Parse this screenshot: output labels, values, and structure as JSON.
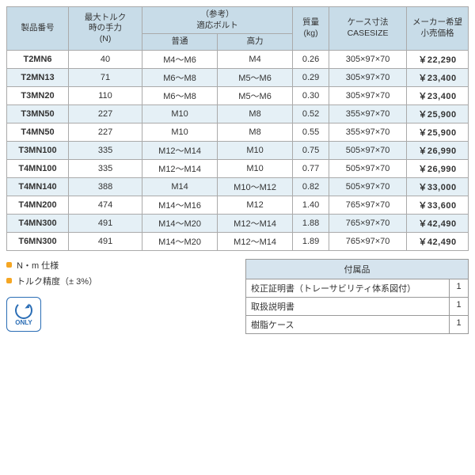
{
  "colors": {
    "header_bg": "#c8dce8",
    "alt_row_bg": "#e5f0f6",
    "border": "#999999",
    "bullet": "#f5a623",
    "badge": "#2a6db5"
  },
  "table": {
    "headers": {
      "product_no": "製品番号",
      "max_torque": "最大トルク\n時の手力\n(N)",
      "bolt_group": "（参考）\n適応ボルト",
      "bolt_normal": "普通",
      "bolt_high": "高力",
      "mass": "質量\n(kg)",
      "case_size": "ケース寸法\nCASESIZE",
      "price": "メーカー希望\n小売価格"
    },
    "rows": [
      {
        "pn": "T2MN6",
        "force": "40",
        "bn": "M4～M6",
        "bh": "M4",
        "mass": "0.26",
        "cs": "305×97×70",
        "price": "￥22,290"
      },
      {
        "pn": "T2MN13",
        "force": "71",
        "bn": "M6～M8",
        "bh": "M5～M6",
        "mass": "0.29",
        "cs": "305×97×70",
        "price": "￥23,400"
      },
      {
        "pn": "T3MN20",
        "force": "110",
        "bn": "M6～M8",
        "bh": "M5～M6",
        "mass": "0.30",
        "cs": "305×97×70",
        "price": "￥23,400"
      },
      {
        "pn": "T3MN50",
        "force": "227",
        "bn": "M10",
        "bh": "M8",
        "mass": "0.52",
        "cs": "355×97×70",
        "price": "￥25,900"
      },
      {
        "pn": "T4MN50",
        "force": "227",
        "bn": "M10",
        "bh": "M8",
        "mass": "0.55",
        "cs": "355×97×70",
        "price": "￥25,900"
      },
      {
        "pn": "T3MN100",
        "force": "335",
        "bn": "M12～M14",
        "bh": "M10",
        "mass": "0.75",
        "cs": "505×97×70",
        "price": "￥26,990"
      },
      {
        "pn": "T4MN100",
        "force": "335",
        "bn": "M12～M14",
        "bh": "M10",
        "mass": "0.77",
        "cs": "505×97×70",
        "price": "￥26,990"
      },
      {
        "pn": "T4MN140",
        "force": "388",
        "bn": "M14",
        "bh": "M10～M12",
        "mass": "0.82",
        "cs": "505×97×70",
        "price": "￥33,000"
      },
      {
        "pn": "T4MN200",
        "force": "474",
        "bn": "M14～M16",
        "bh": "M12",
        "mass": "1.40",
        "cs": "765×97×70",
        "price": "￥33,600"
      },
      {
        "pn": "T4MN300",
        "force": "491",
        "bn": "M14～M20",
        "bh": "M12～M14",
        "mass": "1.88",
        "cs": "765×97×70",
        "price": "￥42,490"
      },
      {
        "pn": "T6MN300",
        "force": "491",
        "bn": "M14～M20",
        "bh": "M12～M14",
        "mass": "1.89",
        "cs": "765×97×70",
        "price": "￥42,490"
      }
    ]
  },
  "notes": [
    "N・m 仕様",
    "トルク精度（± 3%）"
  ],
  "accessories": {
    "title": "付属品",
    "items": [
      {
        "label": "校正証明書（トレーサビリティ体系図付）",
        "qty": "1"
      },
      {
        "label": "取扱説明書",
        "qty": "1"
      },
      {
        "label": "樹脂ケース",
        "qty": "1"
      }
    ]
  },
  "badge": {
    "text": "ONLY"
  }
}
